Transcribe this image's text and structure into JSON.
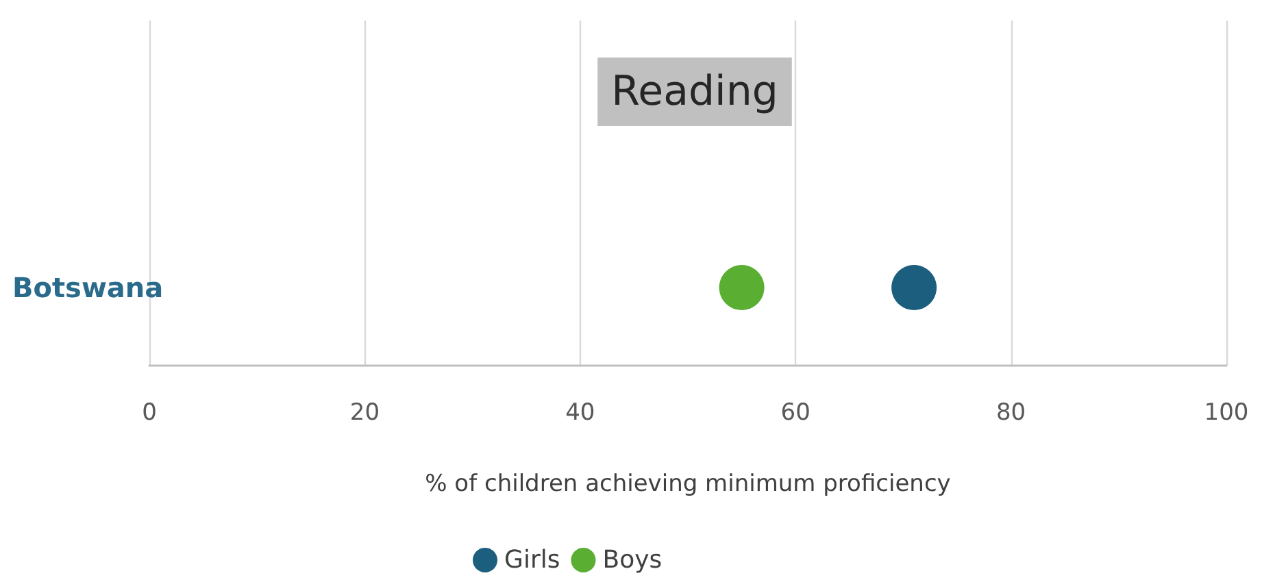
{
  "chart_data": {
    "type": "scatter",
    "title": "Reading",
    "orientation": "horizontal",
    "categories": [
      "Botswana"
    ],
    "series": [
      {
        "name": "Girls",
        "color": "#1b5e7e",
        "values": [
          71
        ]
      },
      {
        "name": "Boys",
        "color": "#5aae32",
        "values": [
          55
        ]
      }
    ],
    "xlabel": "% of children achieving minimum proficiency",
    "xlim": [
      0,
      100
    ],
    "xticks": [
      0,
      20,
      40,
      60,
      80,
      100
    ],
    "grid": "x",
    "legend": "bottom",
    "marker": "circle"
  }
}
